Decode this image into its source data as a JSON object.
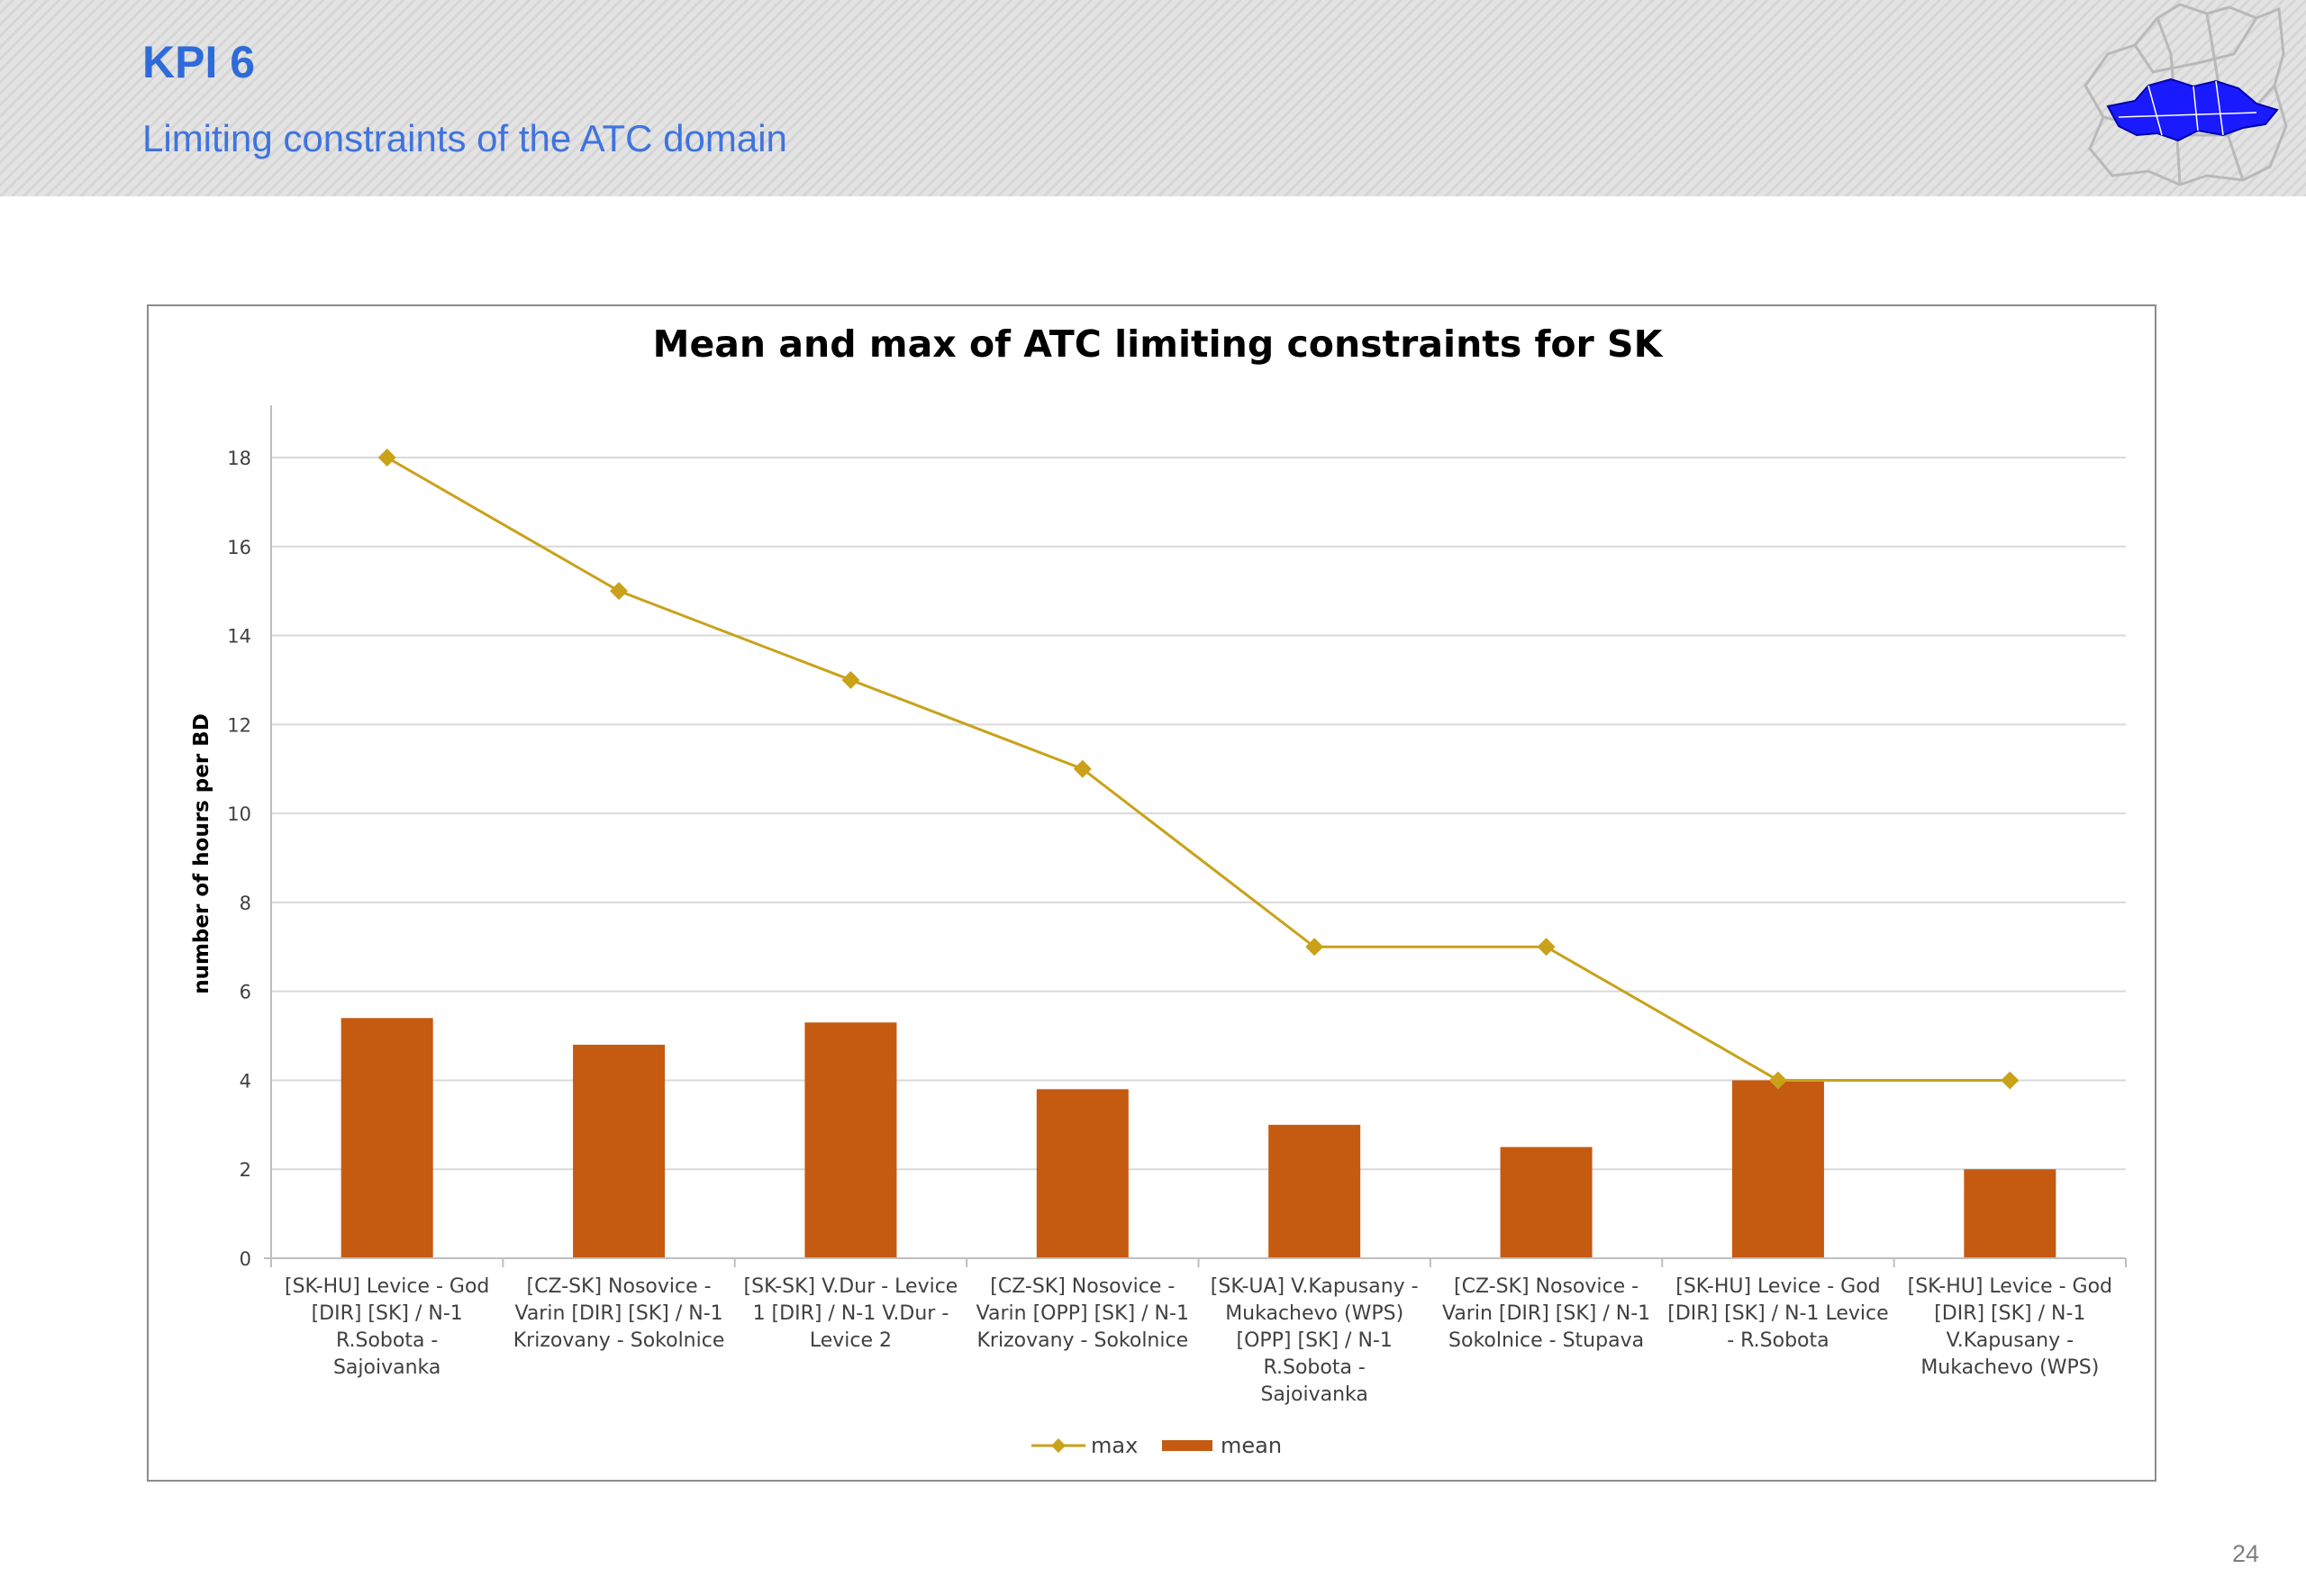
{
  "header": {
    "title": "KPI 6",
    "subtitle": "Limiting constraints of the ATC domain"
  },
  "page_number": "24",
  "colors": {
    "accent": "#2f6bd8",
    "max_series": "#c9a21a",
    "mean_series": "#c55a11",
    "grid": "#d9d9d9"
  },
  "chart_data": {
    "type": "bar",
    "title": "Mean and max of ATC limiting constraints for SK",
    "xlabel": "",
    "ylabel": "number of hours per BD",
    "ylim": [
      0,
      18
    ],
    "yticks": [
      0,
      2,
      4,
      6,
      8,
      10,
      12,
      14,
      16,
      18
    ],
    "grid": true,
    "legend_position": "bottom",
    "categories": [
      [
        "[SK-HU] Levice - God",
        "[DIR] [SK] / N-1",
        "R.Sobota -",
        "Sajoivanka"
      ],
      [
        "[CZ-SK] Nosovice -",
        "Varin [DIR] [SK] / N-1",
        "Krizovany - Sokolnice"
      ],
      [
        "[SK-SK] V.Dur - Levice",
        "1 [DIR] / N-1 V.Dur -",
        "Levice 2"
      ],
      [
        "[CZ-SK] Nosovice -",
        "Varin [OPP] [SK] / N-1",
        "Krizovany - Sokolnice"
      ],
      [
        "[SK-UA] V.Kapusany -",
        "Mukachevo (WPS)",
        "[OPP] [SK] / N-1",
        "R.Sobota -",
        "Sajoivanka"
      ],
      [
        "[CZ-SK] Nosovice -",
        "Varin [DIR] [SK] / N-1",
        "Sokolnice - Stupava"
      ],
      [
        "[SK-HU] Levice - God",
        "[DIR] [SK] / N-1 Levice",
        "- R.Sobota"
      ],
      [
        "[SK-HU] Levice - God",
        "[DIR] [SK] / N-1",
        "V.Kapusany -",
        "Mukachevo (WPS)"
      ]
    ],
    "series": [
      {
        "name": "max",
        "type": "line",
        "color": "#c9a21a",
        "values": [
          18,
          15,
          13,
          11,
          7,
          7,
          4,
          4
        ]
      },
      {
        "name": "mean",
        "type": "bar",
        "color": "#c55a11",
        "values": [
          5.4,
          4.8,
          5.3,
          3.8,
          3.0,
          2.5,
          4.0,
          2.0
        ]
      }
    ]
  }
}
